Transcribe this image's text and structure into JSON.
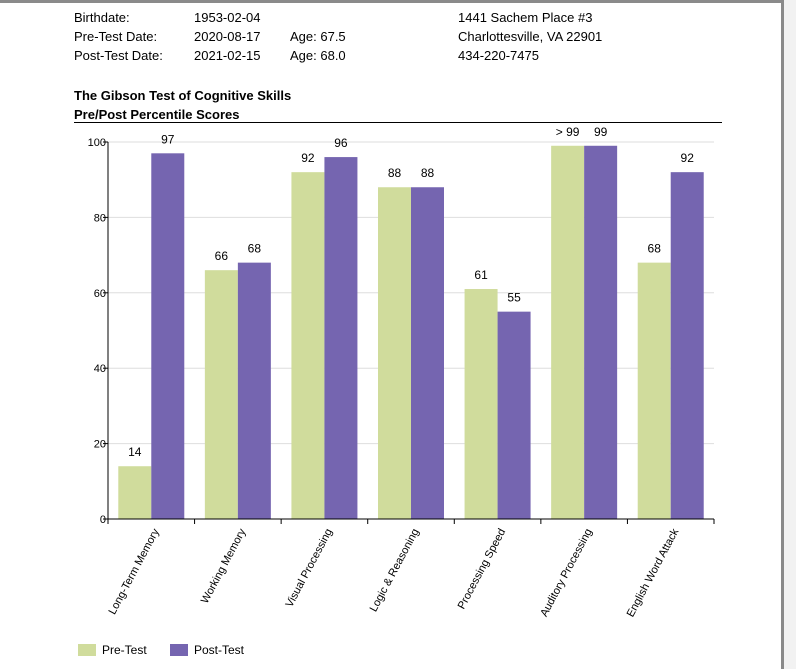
{
  "header": {
    "birthdate_label": "Birthdate:",
    "birthdate_value": "1953-02-04",
    "pretest_label": "Pre-Test Date:",
    "pretest_value": "2020-08-17",
    "pretest_age": "Age: 67.5",
    "posttest_label": "Post-Test Date:",
    "posttest_value": "2021-02-15",
    "posttest_age": "Age: 68.0",
    "address_line1": "1441 Sachem Place #3",
    "address_line2": "Charlottesville, VA 22901",
    "phone": "434-220-7475"
  },
  "chart_data": {
    "type": "bar",
    "title": "The Gibson Test of Cognitive Skills",
    "subtitle": "Pre/Post Percentile Scores",
    "categories": [
      "Long-Term Memory",
      "Working Memory",
      "Visual Processing",
      "Logic & Reasoning",
      "Processing Speed",
      "Auditory Processing",
      "English Word Attack"
    ],
    "series": [
      {
        "name": "Pre-Test",
        "values": [
          14,
          66,
          92,
          88,
          61,
          99,
          68
        ],
        "labels": [
          "14",
          "66",
          "92",
          "88",
          "61",
          "> 99",
          "68"
        ],
        "color": "#d0dc9c"
      },
      {
        "name": "Post-Test",
        "values": [
          97,
          68,
          96,
          88,
          55,
          99,
          92
        ],
        "labels": [
          "97",
          "68",
          "96",
          "88",
          "55",
          "99",
          "92"
        ],
        "color": "#7565b0"
      }
    ],
    "ylim": [
      0,
      100
    ],
    "yticks": [
      "0",
      "20",
      "40",
      "60",
      "80",
      "100"
    ],
    "grid": true,
    "legend": "bottom-left"
  }
}
